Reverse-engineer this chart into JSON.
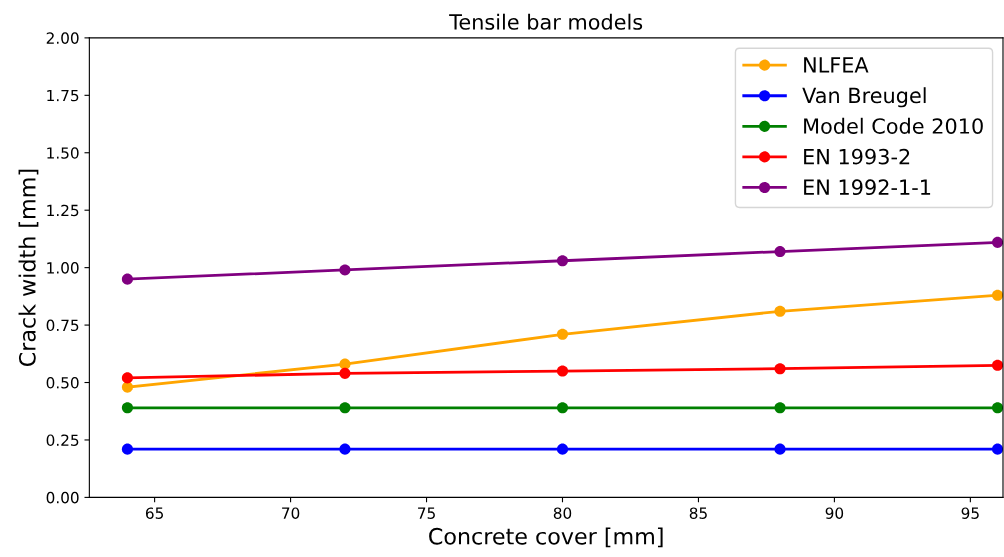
{
  "chart_data": {
    "type": "line",
    "title": "Tensile bar models",
    "xlabel": "Concrete cover [mm]",
    "ylabel": "Crack width [mm]",
    "x": [
      64,
      72,
      80,
      88,
      96
    ],
    "series": [
      {
        "name": "NLFEA",
        "color": "#ffa500",
        "values": [
          0.48,
          0.58,
          0.71,
          0.81,
          0.88
        ]
      },
      {
        "name": "Van Breugel",
        "color": "#0000ff",
        "values": [
          0.21,
          0.21,
          0.21,
          0.21,
          0.21
        ]
      },
      {
        "name": "Model Code 2010",
        "color": "#008000",
        "values": [
          0.39,
          0.39,
          0.39,
          0.39,
          0.39
        ]
      },
      {
        "name": "EN 1993-2",
        "color": "#ff0000",
        "values": [
          0.52,
          0.54,
          0.55,
          0.56,
          0.575
        ]
      },
      {
        "name": "EN 1992-1-1",
        "color": "#800080",
        "values": [
          0.95,
          0.99,
          1.03,
          1.07,
          1.11
        ]
      }
    ],
    "xlim": [
      62.6,
      96.2
    ],
    "xticks": [
      65,
      70,
      75,
      80,
      85,
      90,
      95
    ],
    "ylim": [
      0,
      2
    ],
    "yticks": [
      {
        "value": 0,
        "label": "0.00"
      },
      {
        "value": 0.25,
        "label": "0.25"
      },
      {
        "value": 0.5,
        "label": "0.50"
      },
      {
        "value": 0.75,
        "label": "0.75"
      },
      {
        "value": 1,
        "label": "1.00"
      },
      {
        "value": 1.25,
        "label": "1.25"
      },
      {
        "value": 1.5,
        "label": "1.50"
      },
      {
        "value": 1.75,
        "label": "1.75"
      },
      {
        "value": 2,
        "label": "2.00"
      }
    ],
    "marker": "circle",
    "line_style": "solid",
    "legend": "top right",
    "grid": false
  }
}
